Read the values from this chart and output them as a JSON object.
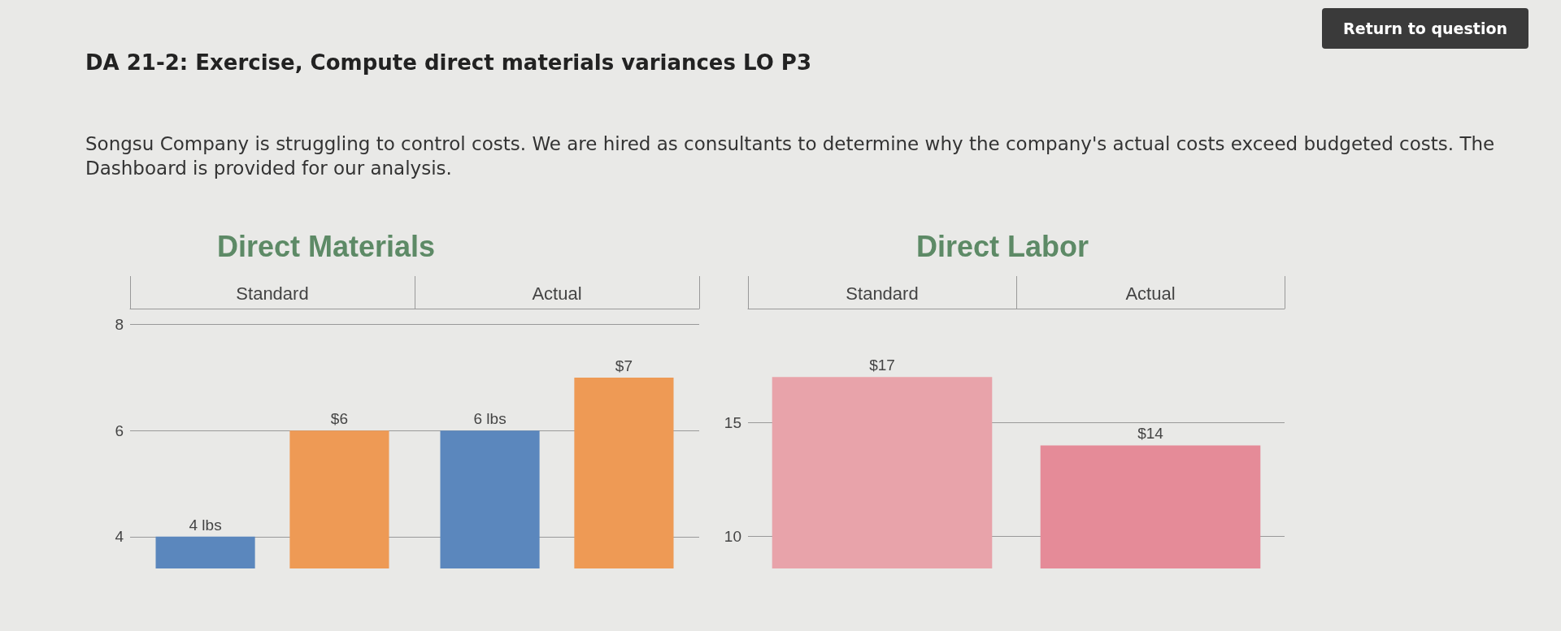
{
  "chart_data": [
    {
      "type": "bar",
      "title": "Direct Materials",
      "categories": [
        "Standard",
        "Actual"
      ],
      "series": [
        {
          "color": "#5b87bd",
          "values": [
            4,
            6
          ],
          "value_labels": [
            "4 lbs",
            "6 lbs"
          ]
        },
        {
          "color": "#ee9a55",
          "values": [
            6,
            7
          ],
          "value_labels": [
            "$6",
            "$7"
          ]
        }
      ],
      "ylim": [
        3.4,
        8.3
      ],
      "yticks": [
        4,
        6,
        8
      ],
      "grid": "y",
      "annotations": [
        "DA 21-2: Exercise, Compute direct materials variances LO P3",
        "Songsu Company is struggling to control costs. We are hired as consultants to determine why the company's actual costs exceed budgeted costs. The Dashboard is provided for our analysis.",
        "Return to question"
      ]
    },
    {
      "type": "bar",
      "title": "Direct Labor",
      "categories": [
        "Standard",
        "Actual"
      ],
      "values": [
        17,
        14
      ],
      "colors": [
        "#e8a3aa",
        "#e58b98"
      ],
      "value_labels": [
        "$17",
        "$14"
      ],
      "ylim": [
        8.6,
        20
      ],
      "yticks": [
        10,
        15
      ],
      "grid": "y"
    }
  ]
}
